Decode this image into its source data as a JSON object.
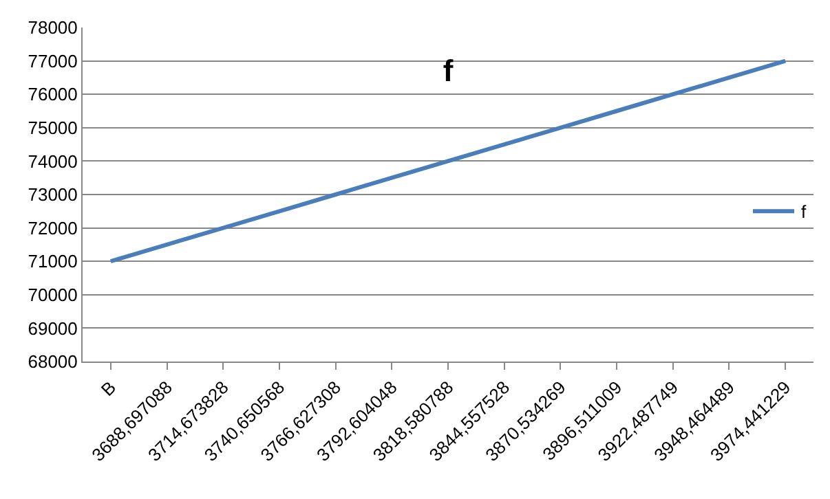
{
  "chart_data": {
    "type": "line",
    "title": "f",
    "categories": [
      "B",
      "3688,697088",
      "3714,673828",
      "3740,650568",
      "3766,627308",
      "3792,604048",
      "3818,580788",
      "3844,557528",
      "3870,534269",
      "3896,511009",
      "3922,487749",
      "3948,464489",
      "3974,441229"
    ],
    "series": [
      {
        "name": "f",
        "color": "#4a7ebb",
        "values": [
          71000,
          71500,
          72000,
          72500,
          73000,
          73500,
          74000,
          74500,
          75000,
          75500,
          76000,
          76500,
          77000
        ]
      }
    ],
    "ylim": [
      68000,
      78000
    ],
    "yticks": [
      68000,
      69000,
      70000,
      71000,
      72000,
      73000,
      74000,
      75000,
      76000,
      77000,
      78000
    ],
    "grid": "y",
    "legend": "right",
    "marker": "none",
    "line_style": "solid"
  }
}
